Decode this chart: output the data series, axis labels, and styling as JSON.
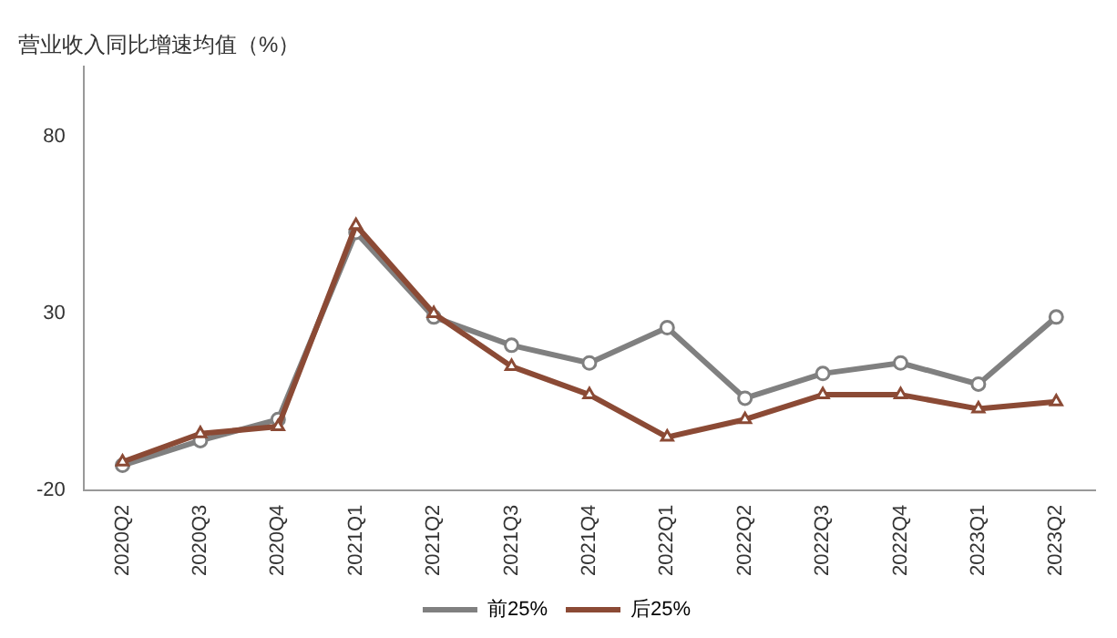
{
  "chart_data": {
    "type": "line",
    "title": "营业收入同比增速均值（%）",
    "categories": [
      "2020Q2",
      "2020Q3",
      "2020Q4",
      "2021Q1",
      "2021Q2",
      "2021Q3",
      "2021Q4",
      "2022Q1",
      "2022Q2",
      "2022Q3",
      "2022Q4",
      "2023Q1",
      "2023Q2"
    ],
    "series": [
      {
        "name": "前25%",
        "color": "#808080",
        "marker": "circle",
        "values": [
          -13,
          -6,
          0,
          53,
          29,
          21,
          16,
          26,
          6,
          13,
          16,
          10,
          29
        ]
      },
      {
        "name": "后25%",
        "color": "#8b4a35",
        "marker": "triangle",
        "values": [
          -12,
          -4,
          -2,
          55,
          30,
          15,
          7,
          -5,
          0,
          7,
          7,
          3,
          5
        ]
      }
    ],
    "ylim": [
      -20,
      100
    ],
    "yticks": [
      -20,
      30,
      80
    ],
    "grid": false,
    "legend": "bottom"
  }
}
